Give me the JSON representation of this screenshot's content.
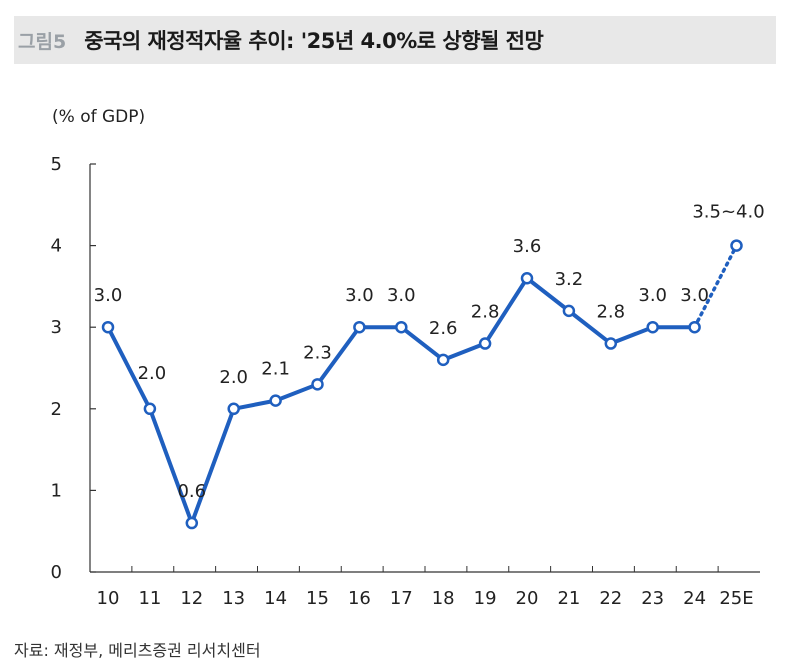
{
  "header": {
    "fig_label": "그림5",
    "title": "중국의 재정적자율 추이: '25년 4.0%로 상향될 전망"
  },
  "chart_data": {
    "type": "line",
    "unit_label": "(% of GDP)",
    "categories": [
      "10",
      "11",
      "12",
      "13",
      "14",
      "15",
      "16",
      "17",
      "18",
      "19",
      "20",
      "21",
      "22",
      "23",
      "24",
      "25E"
    ],
    "series": [
      {
        "values": [
          3.0,
          2.0,
          0.6,
          2.0,
          2.1,
          2.3,
          3.0,
          3.0,
          2.6,
          2.8,
          3.6,
          3.2,
          2.8,
          3.0,
          3.0,
          4.0
        ],
        "data_labels": [
          "3.0",
          "2.0",
          "0.6",
          "2.0",
          "2.1",
          "2.3",
          "3.0",
          "3.0",
          "2.6",
          "2.8",
          "3.6",
          "3.2",
          "2.8",
          "3.0",
          "3.0",
          "3.5~4.0"
        ],
        "estimate_from_index": 14,
        "color": "#1f5fbf"
      }
    ],
    "ylim": [
      0,
      5
    ],
    "yticks": [
      "0",
      "1",
      "2",
      "3",
      "4",
      "5"
    ],
    "grid": false
  },
  "footer": {
    "source": "자료: 재정부, 메리츠증권 리서치센터"
  }
}
